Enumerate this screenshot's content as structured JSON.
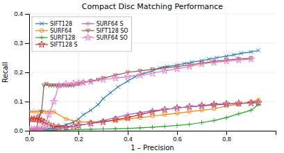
{
  "chart_data": {
    "type": "line",
    "title": "Compact Disc Matching Performance",
    "x_label": "1 – Precision",
    "y_label": "Recall",
    "xlim": [
      0,
      1.0
    ],
    "ylim": [
      0,
      0.4
    ],
    "xticks": [
      {
        "value": 0,
        "label": "0.0"
      },
      0.2,
      0.4,
      0.6,
      0.8
    ],
    "yticks": [
      {
        "value": 0,
        "label": "0.0"
      },
      0.1,
      0.2,
      0.3,
      0.4
    ],
    "grid": true,
    "legend": "upper-left",
    "series": [
      {
        "name": "SIFT128",
        "marker": "x",
        "x": [
          0.0,
          0.02,
          0.04,
          0.06,
          0.08,
          0.1,
          0.12,
          0.15,
          0.18,
          0.2,
          0.22,
          0.25,
          0.28,
          0.3,
          0.33,
          0.36,
          0.4,
          0.43,
          0.46,
          0.5,
          0.53,
          0.56,
          0.6,
          0.63,
          0.66,
          0.7,
          0.73,
          0.76,
          0.8,
          0.83,
          0.86,
          0.9,
          0.93
        ],
        "values": [
          0.0,
          0.002,
          0.003,
          0.005,
          0.008,
          0.01,
          0.015,
          0.02,
          0.03,
          0.04,
          0.055,
          0.07,
          0.09,
          0.11,
          0.13,
          0.15,
          0.17,
          0.185,
          0.195,
          0.205,
          0.215,
          0.22,
          0.225,
          0.23,
          0.235,
          0.24,
          0.245,
          0.25,
          0.255,
          0.26,
          0.265,
          0.27,
          0.275
        ]
      },
      {
        "name": "SURF64",
        "marker": "circle",
        "x": [
          0.0,
          0.02,
          0.04,
          0.06,
          0.08,
          0.1,
          0.15,
          0.2,
          0.25,
          0.3,
          0.35,
          0.4,
          0.45,
          0.5,
          0.55,
          0.6,
          0.65,
          0.7,
          0.75,
          0.8,
          0.85,
          0.9,
          0.93
        ],
        "values": [
          0.065,
          0.065,
          0.065,
          0.065,
          0.065,
          0.065,
          0.04,
          0.03,
          0.03,
          0.032,
          0.035,
          0.04,
          0.045,
          0.05,
          0.055,
          0.06,
          0.065,
          0.07,
          0.075,
          0.085,
          0.09,
          0.1,
          0.105
        ]
      },
      {
        "name": "SURF128",
        "marker": "plus",
        "x": [
          0.0,
          0.05,
          0.1,
          0.15,
          0.2,
          0.25,
          0.3,
          0.35,
          0.4,
          0.45,
          0.5,
          0.55,
          0.6,
          0.65,
          0.7,
          0.75,
          0.8,
          0.85,
          0.9,
          0.93
        ],
        "values": [
          0.0,
          0.001,
          0.002,
          0.003,
          0.004,
          0.005,
          0.006,
          0.007,
          0.008,
          0.01,
          0.012,
          0.015,
          0.018,
          0.022,
          0.028,
          0.035,
          0.045,
          0.058,
          0.07,
          0.09
        ]
      },
      {
        "name": "SIFT128 S",
        "marker": "star",
        "x": [
          0.0,
          0.01,
          0.02,
          0.03,
          0.04,
          0.05,
          0.06,
          0.08,
          0.1,
          0.12,
          0.15,
          0.18,
          0.2,
          0.25,
          0.3,
          0.35,
          0.4,
          0.45,
          0.5,
          0.55,
          0.6,
          0.65,
          0.7,
          0.75,
          0.8,
          0.85,
          0.9,
          0.93
        ],
        "values": [
          0.04,
          0.04,
          0.04,
          0.04,
          0.038,
          0.035,
          0.03,
          0.022,
          0.015,
          0.012,
          0.012,
          0.015,
          0.018,
          0.025,
          0.03,
          0.038,
          0.045,
          0.055,
          0.065,
          0.072,
          0.078,
          0.082,
          0.086,
          0.09,
          0.092,
          0.094,
          0.095,
          0.096
        ]
      },
      {
        "name": "SURF64 S",
        "marker": "diamond",
        "x": [
          0.0,
          0.05,
          0.1,
          0.15,
          0.2,
          0.25,
          0.3,
          0.35,
          0.4,
          0.45,
          0.5,
          0.55,
          0.6,
          0.65,
          0.7,
          0.75,
          0.8,
          0.85,
          0.9,
          0.93
        ],
        "values": [
          0.0,
          0.003,
          0.005,
          0.01,
          0.018,
          0.025,
          0.035,
          0.045,
          0.055,
          0.062,
          0.068,
          0.073,
          0.078,
          0.082,
          0.085,
          0.088,
          0.091,
          0.093,
          0.095,
          0.097
        ]
      },
      {
        "name": "SIFT128 SO",
        "marker": "triangle-down",
        "x": [
          0.0,
          0.01,
          0.02,
          0.03,
          0.04,
          0.05,
          0.06,
          0.07,
          0.08,
          0.09,
          0.1,
          0.11,
          0.12,
          0.13,
          0.14,
          0.15,
          0.16,
          0.17,
          0.18,
          0.2,
          0.22,
          0.25,
          0.28,
          0.3,
          0.35,
          0.4,
          0.45,
          0.5,
          0.55,
          0.6,
          0.65,
          0.7,
          0.75,
          0.8,
          0.85,
          0.9
        ],
        "values": [
          0.0,
          0.0,
          0.0,
          0.005,
          0.05,
          0.065,
          0.155,
          0.16,
          0.155,
          0.155,
          0.155,
          0.155,
          0.155,
          0.155,
          0.155,
          0.155,
          0.155,
          0.155,
          0.155,
          0.16,
          0.165,
          0.17,
          0.175,
          0.18,
          0.19,
          0.2,
          0.205,
          0.21,
          0.215,
          0.22,
          0.225,
          0.232,
          0.237,
          0.242,
          0.246,
          0.248
        ]
      },
      {
        "name": "SURF64 SO",
        "marker": "star",
        "x": [
          0.0,
          0.01,
          0.02,
          0.03,
          0.04,
          0.05,
          0.06,
          0.08,
          0.1,
          0.12,
          0.15,
          0.18,
          0.2,
          0.22,
          0.25,
          0.3,
          0.35,
          0.4,
          0.45,
          0.5,
          0.55,
          0.6,
          0.65,
          0.7,
          0.75,
          0.8,
          0.85,
          0.9
        ],
        "values": [
          0.005,
          0.005,
          0.005,
          0.005,
          0.005,
          0.006,
          0.01,
          0.055,
          0.1,
          0.155,
          0.16,
          0.162,
          0.163,
          0.165,
          0.168,
          0.175,
          0.18,
          0.185,
          0.19,
          0.197,
          0.205,
          0.212,
          0.22,
          0.228,
          0.234,
          0.238,
          0.242,
          0.245
        ]
      }
    ]
  }
}
